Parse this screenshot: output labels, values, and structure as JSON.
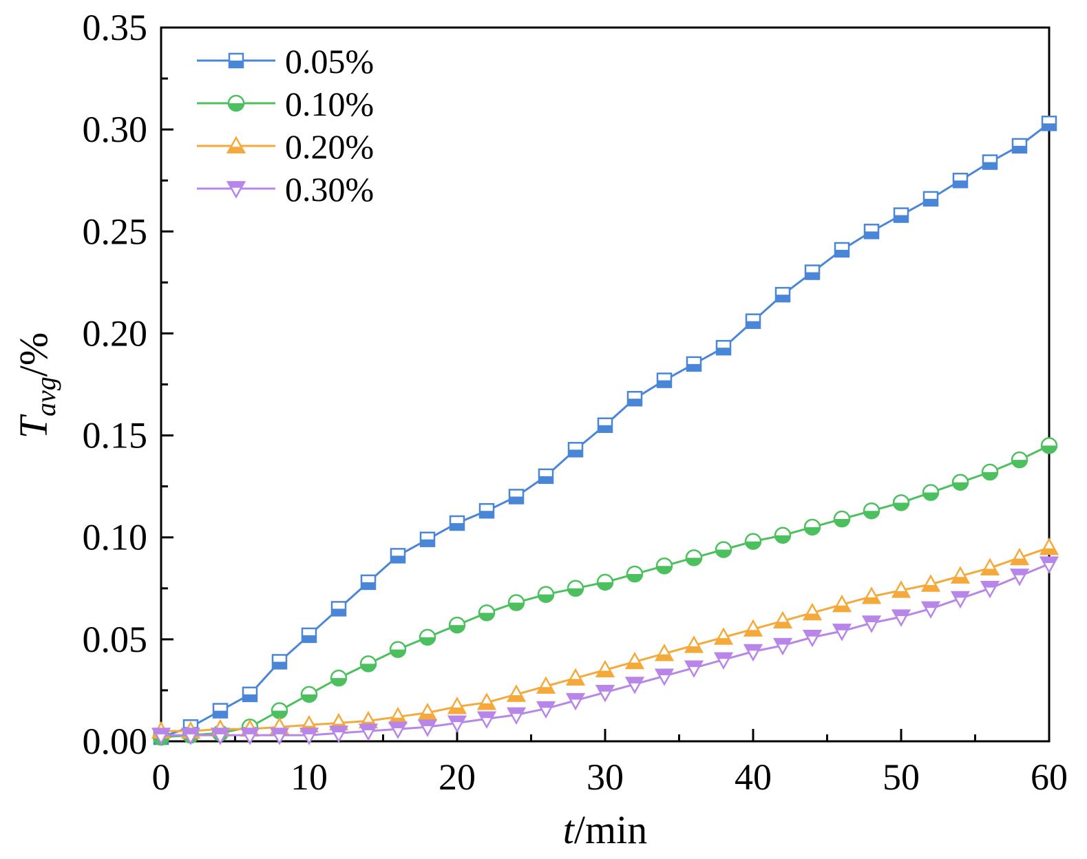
{
  "chart_data": {
    "type": "line",
    "x_title_italic": "t",
    "x_title_unit": "/min",
    "y_title_main": "T",
    "y_title_sub": "avg",
    "y_title_unit": "/%",
    "xlim": [
      0,
      60
    ],
    "ylim": [
      0,
      0.35
    ],
    "xticks": [
      0,
      10,
      20,
      30,
      40,
      50,
      60
    ],
    "xtick_labels": [
      "0",
      "10",
      "20",
      "30",
      "40",
      "50",
      "60"
    ],
    "yticks": [
      0,
      0.05,
      0.1,
      0.15,
      0.2,
      0.25,
      0.3,
      0.35
    ],
    "ytick_labels": [
      "0.00",
      "0.05",
      "0.10",
      "0.15",
      "0.20",
      "0.25",
      "0.30",
      "0.35"
    ],
    "x": [
      0,
      2,
      4,
      6,
      8,
      10,
      12,
      14,
      16,
      18,
      20,
      22,
      24,
      26,
      28,
      30,
      32,
      34,
      36,
      38,
      40,
      42,
      44,
      46,
      48,
      50,
      52,
      54,
      56,
      58,
      60
    ],
    "legend_position": "top-left",
    "series": [
      {
        "name": "0.05%",
        "color": "#4a86d8",
        "marker": "square",
        "values": [
          0.002,
          0.007,
          0.015,
          0.023,
          0.039,
          0.052,
          0.065,
          0.078,
          0.091,
          0.099,
          0.107,
          0.113,
          0.12,
          0.13,
          0.143,
          0.155,
          0.168,
          0.177,
          0.185,
          0.193,
          0.206,
          0.219,
          0.23,
          0.241,
          0.25,
          0.258,
          0.266,
          0.275,
          0.284,
          0.292,
          0.303
        ]
      },
      {
        "name": "0.10%",
        "color": "#4cc05e",
        "marker": "circle",
        "values": [
          0.002,
          0.003,
          0.004,
          0.007,
          0.015,
          0.023,
          0.031,
          0.038,
          0.045,
          0.051,
          0.057,
          0.063,
          0.068,
          0.072,
          0.075,
          0.078,
          0.082,
          0.086,
          0.09,
          0.094,
          0.098,
          0.101,
          0.105,
          0.109,
          0.113,
          0.117,
          0.122,
          0.127,
          0.132,
          0.138,
          0.145
        ]
      },
      {
        "name": "0.20%",
        "color": "#f5a93a",
        "marker": "triangle-up",
        "values": [
          0.005,
          0.005,
          0.006,
          0.006,
          0.007,
          0.008,
          0.009,
          0.01,
          0.012,
          0.014,
          0.017,
          0.019,
          0.023,
          0.027,
          0.031,
          0.035,
          0.039,
          0.043,
          0.047,
          0.051,
          0.055,
          0.059,
          0.063,
          0.067,
          0.071,
          0.074,
          0.077,
          0.081,
          0.085,
          0.09,
          0.095
        ]
      },
      {
        "name": "0.30%",
        "color": "#b886e8",
        "marker": "triangle-down",
        "values": [
          0.003,
          0.003,
          0.003,
          0.003,
          0.003,
          0.003,
          0.004,
          0.005,
          0.006,
          0.007,
          0.009,
          0.011,
          0.013,
          0.016,
          0.02,
          0.024,
          0.028,
          0.032,
          0.036,
          0.04,
          0.044,
          0.047,
          0.051,
          0.054,
          0.058,
          0.061,
          0.065,
          0.07,
          0.075,
          0.081,
          0.087
        ]
      }
    ]
  }
}
